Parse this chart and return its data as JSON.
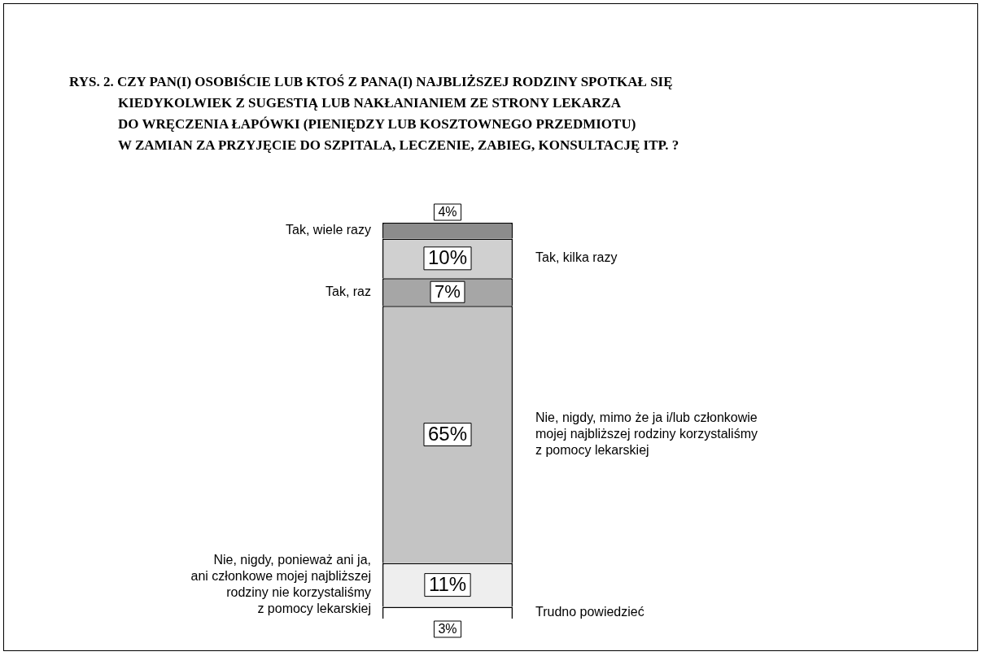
{
  "chart_data": {
    "type": "bar",
    "stacked": true,
    "title": "RYS. 2. CZY PAN(I) OSOBIŚCIE LUB KTOŚ Z PANA(I) NAJBLIŻSZEJ RODZINY SPOTKAŁ SIĘ\nKIEDYKOLWIEK Z SUGESTIĄ LUB NAKŁANIANIEM ZE STRONY LEKARZA\nDO WRĘCZENIA ŁAPÓWKI (PIENIĘDZY LUB KOSZTOWNEGO PRZEDMIOTU)\nW ZAMIAN ZA PRZYJĘCIE DO SZPITALA, LECZENIE, ZABIEG, KONSULTACJĘ ITP. ?",
    "categories": [
      null
    ],
    "legend": false,
    "series": [
      {
        "name": "Trudno powiedzieć",
        "color": "#ffffff",
        "values": [
          3
        ],
        "value_labels": [
          "3%"
        ]
      },
      {
        "name": "Nie, nigdy, ponieważ ani ja,\nani członkowe mojej najbliższej\nrodziny nie korzystaliśmy\nz pomocy lekarskiej",
        "color": "#eeeeee",
        "values": [
          11
        ],
        "value_labels": [
          "11%"
        ]
      },
      {
        "name": "Nie, nigdy, mimo że ja i/lub członkowie\nmojej najbliższej rodziny korzystaliśmy\nz pomocy lekarskiej",
        "color": "#c4c4c4",
        "values": [
          65
        ],
        "value_labels": [
          "65%"
        ]
      },
      {
        "name": "Tak, raz",
        "color": "#a6a6a6",
        "values": [
          7
        ],
        "value_labels": [
          "7%"
        ]
      },
      {
        "name": "Tak, kilka razy",
        "color": "#d0d0d0",
        "values": [
          10
        ],
        "value_labels": [
          "10%"
        ]
      },
      {
        "name": "Tak, wiele razy",
        "color": "#8c8c8c",
        "values": [
          4
        ],
        "value_labels": [
          "4%"
        ]
      }
    ]
  }
}
